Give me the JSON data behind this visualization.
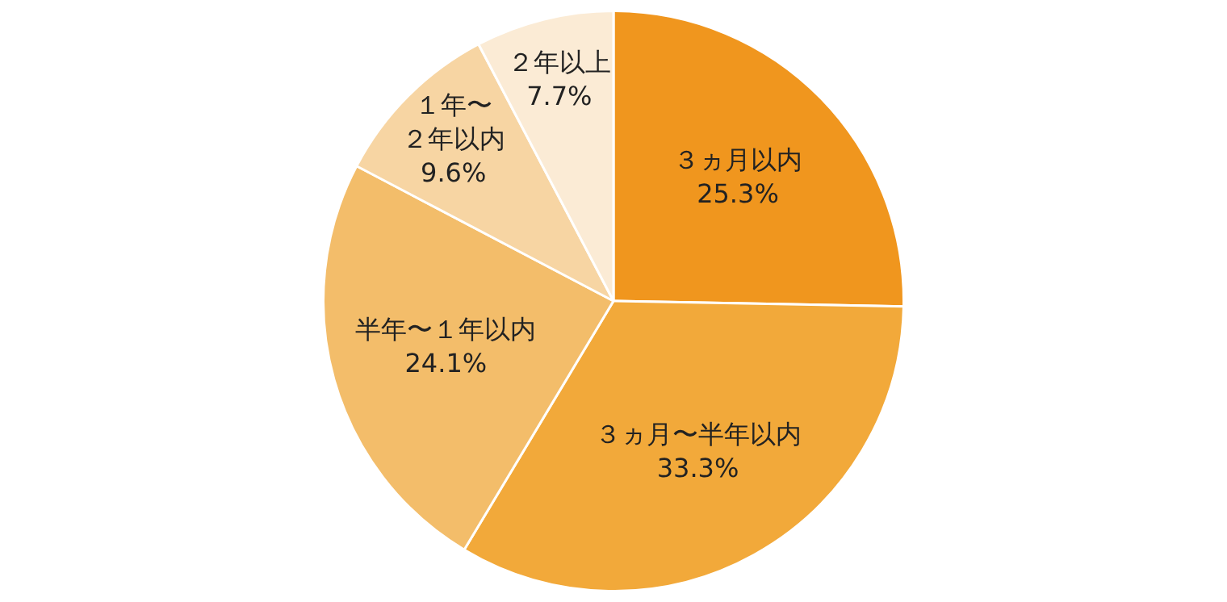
{
  "chart_data": {
    "type": "pie",
    "categories": [
      "３ヵ月以内",
      "３ヵ月〜半年以内",
      "半年〜１年以内",
      "１年〜２年以内",
      "２年以上"
    ],
    "values": [
      25.3,
      33.3,
      24.1,
      9.6,
      7.7
    ],
    "value_labels": [
      "25.3%",
      "33.3%",
      "24.1%",
      "9.6%",
      "7.7%"
    ],
    "colors": [
      "#f0961e",
      "#f2a93a",
      "#f3bd6a",
      "#f7d5a3",
      "#fbebd5"
    ],
    "legend": false
  }
}
